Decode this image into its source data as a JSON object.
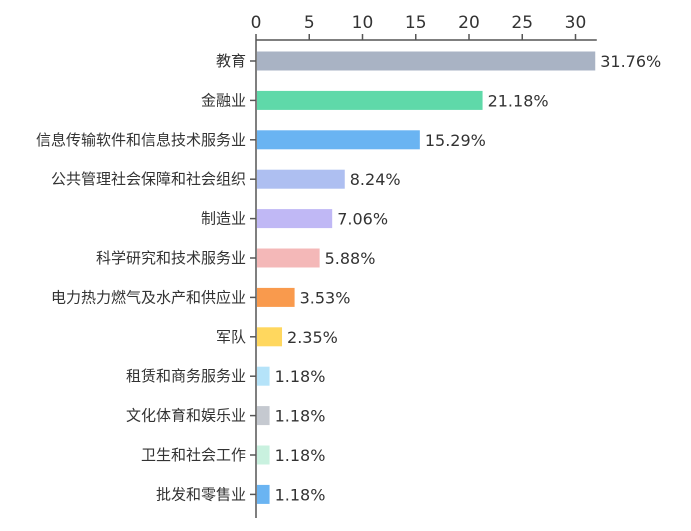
{
  "chart_data": {
    "type": "bar",
    "orientation": "horizontal",
    "title": "",
    "xlabel": "",
    "ylabel": "",
    "xlim": [
      0,
      32
    ],
    "ticks": [
      "0",
      "5",
      "10",
      "15",
      "20",
      "25",
      "30"
    ],
    "tick_values": [
      0,
      5,
      10,
      15,
      20,
      25,
      30
    ],
    "axis_position": "top",
    "grid": false,
    "categories": [
      "教育",
      "金融业",
      "信息传输软件和信息技术服务业",
      "公共管理社会保障和社会组织",
      "制造业",
      "科学研究和技术服务业",
      "电力热力燃气及水产和供应业",
      "军队",
      "租赁和商务服务业",
      "文化体育和娱乐业",
      "卫生和社会工作",
      "批发和零售业"
    ],
    "values": [
      31.76,
      21.18,
      15.29,
      8.24,
      7.06,
      5.88,
      3.53,
      2.35,
      1.18,
      1.18,
      1.18,
      1.18
    ],
    "value_labels": [
      "31.76%",
      "21.18%",
      "15.29%",
      "8.24%",
      "7.06%",
      "5.88%",
      "3.53%",
      "2.35%",
      "1.18%",
      "1.18%",
      "1.18%",
      "1.18%"
    ],
    "colors": [
      "#A9B3C4",
      "#5FD9A9",
      "#6AB4F2",
      "#AEBFF1",
      "#C0B8F5",
      "#F4B8B8",
      "#F99A4D",
      "#FFD75E",
      "#B5E3F9",
      "#C5C9D0",
      "#C9F1DF",
      "#6AB4F2"
    ]
  }
}
